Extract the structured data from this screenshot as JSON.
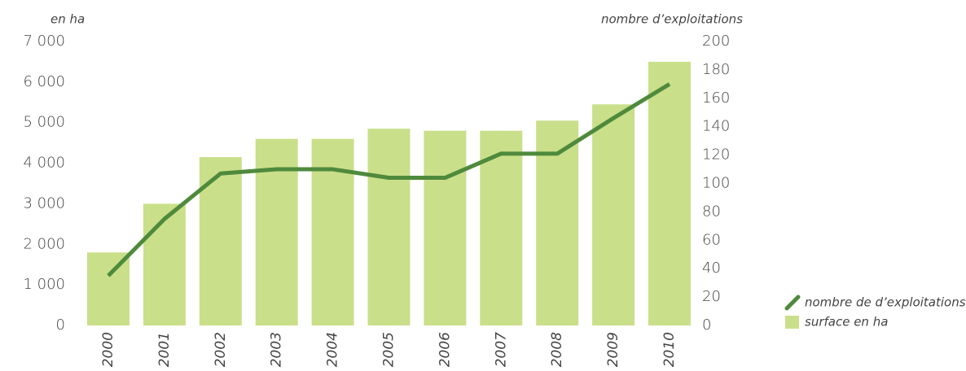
{
  "chart_data": {
    "type": "bar",
    "ylabel": "en ha",
    "y2label": "nombre d’exploitations",
    "categories": [
      "2000",
      "2001",
      "2002",
      "2003",
      "2004",
      "2005",
      "2006",
      "2007",
      "2008",
      "2009",
      "2010"
    ],
    "series": [
      {
        "name": "nombre de d’exploitations",
        "type": "line",
        "axis": "y2",
        "color": "#4f8a3c",
        "values": [
          35,
          75,
          107,
          110,
          110,
          104,
          104,
          121,
          121,
          146,
          170
        ]
      },
      {
        "name": "surface en ha",
        "type": "bar",
        "color": "#cadf8a",
        "values": [
          1800,
          3000,
          4150,
          4600,
          4600,
          4850,
          4800,
          4800,
          5050,
          5450,
          6500
        ]
      }
    ],
    "ylim": [
      0,
      7000
    ],
    "yticks": [
      0,
      {
        "value": 1000,
        "label": "1 000"
      },
      {
        "value": 2000,
        "label": "2 000"
      },
      {
        "value": 3000,
        "label": "3 000"
      },
      {
        "value": 4000,
        "label": "4 000"
      },
      {
        "value": 5000,
        "label": "5 000"
      },
      {
        "value": 6000,
        "label": "6 000"
      },
      {
        "value": 7000,
        "label": "7 000"
      }
    ],
    "y2lim": [
      0,
      200
    ],
    "y2ticks": [
      0,
      20,
      40,
      60,
      80,
      100,
      120,
      140,
      160,
      180,
      200
    ],
    "grid": false
  }
}
